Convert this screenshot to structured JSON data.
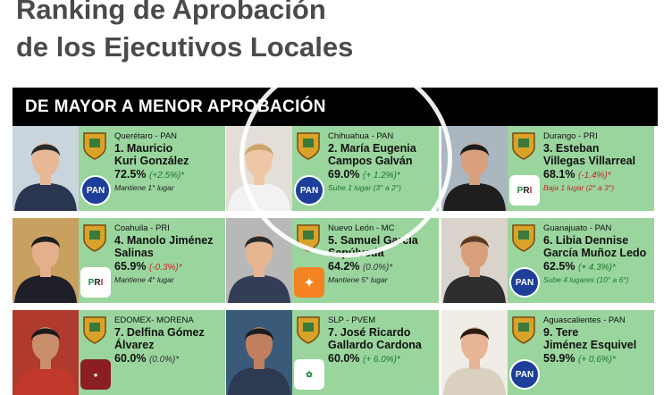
{
  "title": {
    "line1": "Ranking de Aprobación",
    "line2": "de los Ejecutivos Locales"
  },
  "banner": "DE MAYOR A MENOR APROBACIÓN",
  "colors": {
    "card": "#9ad59e",
    "up": "#1a7a2a",
    "down": "#c62828"
  },
  "cards": [
    {
      "state": "Querétaro - PAN",
      "name1": "1. Mauricio",
      "name2": "Kuri González",
      "pct": "72.5%",
      "change": "(+2.5%)*",
      "note": "Mantiene 1° lugar",
      "party": "PAN",
      "trend": "up",
      "note_trend": "flat"
    },
    {
      "state": "Chihuahua - PAN",
      "name1": "2. María Eugenia",
      "name2": "Campos Galván",
      "pct": "69.0%",
      "change": "(+ 1.2%)*",
      "note": "Sube 1 lugar (3° a 2°)",
      "party": "PAN",
      "trend": "up",
      "note_trend": "up"
    },
    {
      "state": "Durango - PRI",
      "name1": "3. Esteban",
      "name2": "Villegas Villarreal",
      "pct": "68.1%",
      "change": "(-1.4%)*",
      "note": "Baja 1 lugar (2° a 3°)",
      "party": "PRI",
      "trend": "down",
      "note_trend": "down"
    },
    {
      "state": "Coahuila - PRI",
      "name1": "4. Manolo Jiménez",
      "name2": "Salinas",
      "pct": "65.9%",
      "change": "(-0.3%)*",
      "note": "Mantiene 4° lugar",
      "party": "PRI",
      "trend": "down",
      "note_trend": "flat"
    },
    {
      "state": "Nuevo León - MC",
      "name1": "5. Samuel García",
      "name2": "Sepúlveda",
      "pct": "64.2%",
      "change": "(0.0%)*",
      "note": "Mantiene 5° lugar",
      "party": "MC",
      "trend": "flat",
      "note_trend": "flat"
    },
    {
      "state": "Guanajuato - PAN",
      "name1": "6. Libia Dennise",
      "name2": "García Muñoz Ledo",
      "pct": "62.5%",
      "change": "(+ 4.3%)*",
      "note": "Sube 4 lugares (10° a 6°)",
      "party": "PAN",
      "trend": "up",
      "note_trend": "up"
    },
    {
      "state": "EDOMEX- MORENA",
      "name1": "7. Delfina Gómez",
      "name2": "Álvarez",
      "pct": "60.0%",
      "change": "(0.0%)*",
      "note": "",
      "party": "MORENA",
      "trend": "flat",
      "note_trend": "flat"
    },
    {
      "state": "SLP - PVEM",
      "name1": "7. José Ricardo",
      "name2": "Gallardo Cardona",
      "pct": "60.0%",
      "change": "(+ 6.0%)*",
      "note": "",
      "party": "PVEM",
      "trend": "up",
      "note_trend": "flat"
    },
    {
      "state": "Aguascalientes - PAN",
      "name1": "9. Tere",
      "name2": "Jiménez Esquivel",
      "pct": "59.9%",
      "change": "(+ 0.6%)*",
      "note": "",
      "party": "PAN",
      "trend": "up",
      "note_trend": "flat"
    }
  ]
}
